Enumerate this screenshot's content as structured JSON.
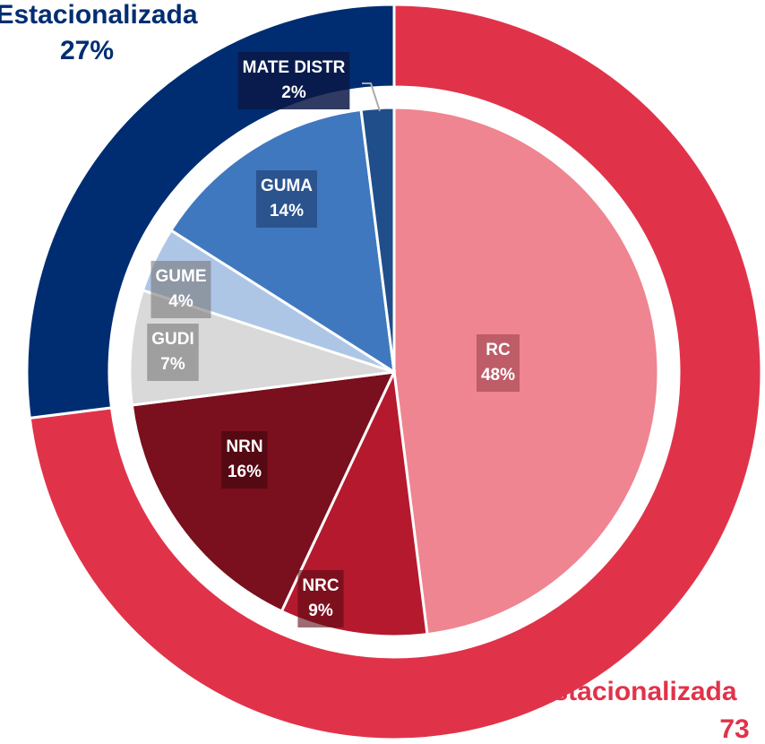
{
  "chart_data": {
    "type": "pie",
    "rings": [
      {
        "labels": [
          "Estacionalizada",
          "Estacionalizada"
        ],
        "values": [
          73,
          27
        ],
        "value_labels": [
          "73",
          "27%"
        ],
        "colors": [
          "#e0334a",
          "#002d72"
        ]
      },
      {
        "labels": [
          "RC",
          "NRC",
          "NRN",
          "GUDI",
          "GUME",
          "GUMA",
          "MATE DISTR"
        ],
        "values": [
          48,
          9,
          16,
          7,
          4,
          14,
          2
        ],
        "value_labels": [
          "48%",
          "9%",
          "16%",
          "7%",
          "4%",
          "14%",
          "2%"
        ],
        "colors": [
          "#ef8591",
          "#b5192e",
          "#7a0f1d",
          "#d9d9d9",
          "#aec6e6",
          "#3f78bf",
          "#1f4e8a"
        ]
      }
    ]
  }
}
